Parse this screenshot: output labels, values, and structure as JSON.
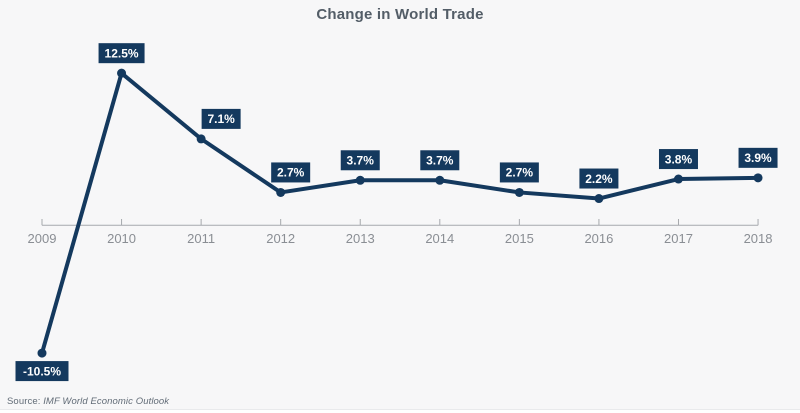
{
  "page": {
    "background": "#f7f7f8"
  },
  "chart_data": {
    "type": "line",
    "title": "Change in World Trade",
    "categories": [
      "2009",
      "2010",
      "2011",
      "2012",
      "2013",
      "2014",
      "2015",
      "2016",
      "2017",
      "2018"
    ],
    "values": [
      -10.5,
      12.5,
      7.1,
      2.7,
      3.7,
      3.7,
      2.7,
      2.2,
      3.8,
      3.9
    ],
    "point_labels": [
      "-10.5%",
      "12.5%",
      "7.1%",
      "2.7%",
      "3.7%",
      "3.7%",
      "2.7%",
      "2.2%",
      "3.8%",
      "3.9%"
    ],
    "xlabel": "",
    "ylabel": "",
    "ylim": [
      -13,
      14
    ],
    "grid": false,
    "legend": false,
    "colors": {
      "line": "#14395e",
      "point": "#14395e",
      "label_bg": "#14395e",
      "label_text": "#ffffff",
      "axis": "#a6a9ad",
      "axis_label": "#8a8e94",
      "title": "#535d67",
      "source_text": "#626c77",
      "background": "#f7f7f8"
    }
  },
  "source": {
    "prefix": "Source: ",
    "text": "IMF World Economic Outlook"
  }
}
